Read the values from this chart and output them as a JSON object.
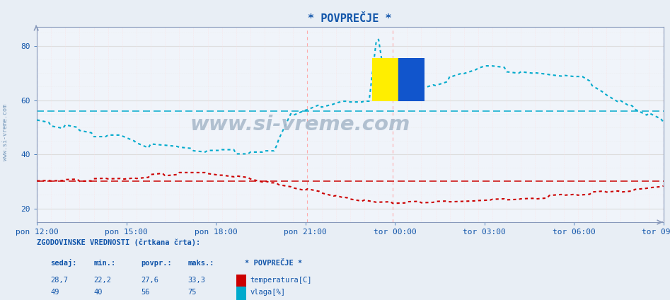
{
  "title": "* POVPREČJE *",
  "background_color": "#e8eef5",
  "plot_bg_color": "#f0f4fa",
  "grid_h_major_color": "#dddddd",
  "grid_h_minor_color": "#e8e8e8",
  "vgrid_major_color": "#ffaaaa",
  "vgrid_minor_color": "#ffdddd",
  "xlabels": [
    "pon 12:00",
    "pon 15:00",
    "pon 18:00",
    "pon 21:00",
    "tor 00:00",
    "tor 03:00",
    "tor 06:00",
    "tor 09:00"
  ],
  "yticks": [
    20,
    40,
    60,
    80
  ],
  "ylim": [
    15,
    87
  ],
  "temp_color": "#cc0000",
  "humidity_color": "#00aacc",
  "text_color": "#1155aa",
  "title_color": "#1155aa",
  "watermark": "www.si-vreme.com",
  "watermark_color": "#aabbcc",
  "stats_label": "ZGODOVINSKE VREDNOSTI (črtkana črta):",
  "stats_headers": [
    "sedaj:",
    "min.:",
    "povpr.:",
    "maks.:"
  ],
  "temp_stats": [
    "28,7",
    "22,2",
    "27,6",
    "33,3"
  ],
  "humidity_stats": [
    "49",
    "40",
    "56",
    "75"
  ],
  "temp_label": "temperatura[C]",
  "humidity_label": "vlaga[%]",
  "legend_title": "* POVPREČJE *",
  "temp_hist_val": 30.0,
  "humidity_hist_val": 56.0,
  "n_points": 265
}
